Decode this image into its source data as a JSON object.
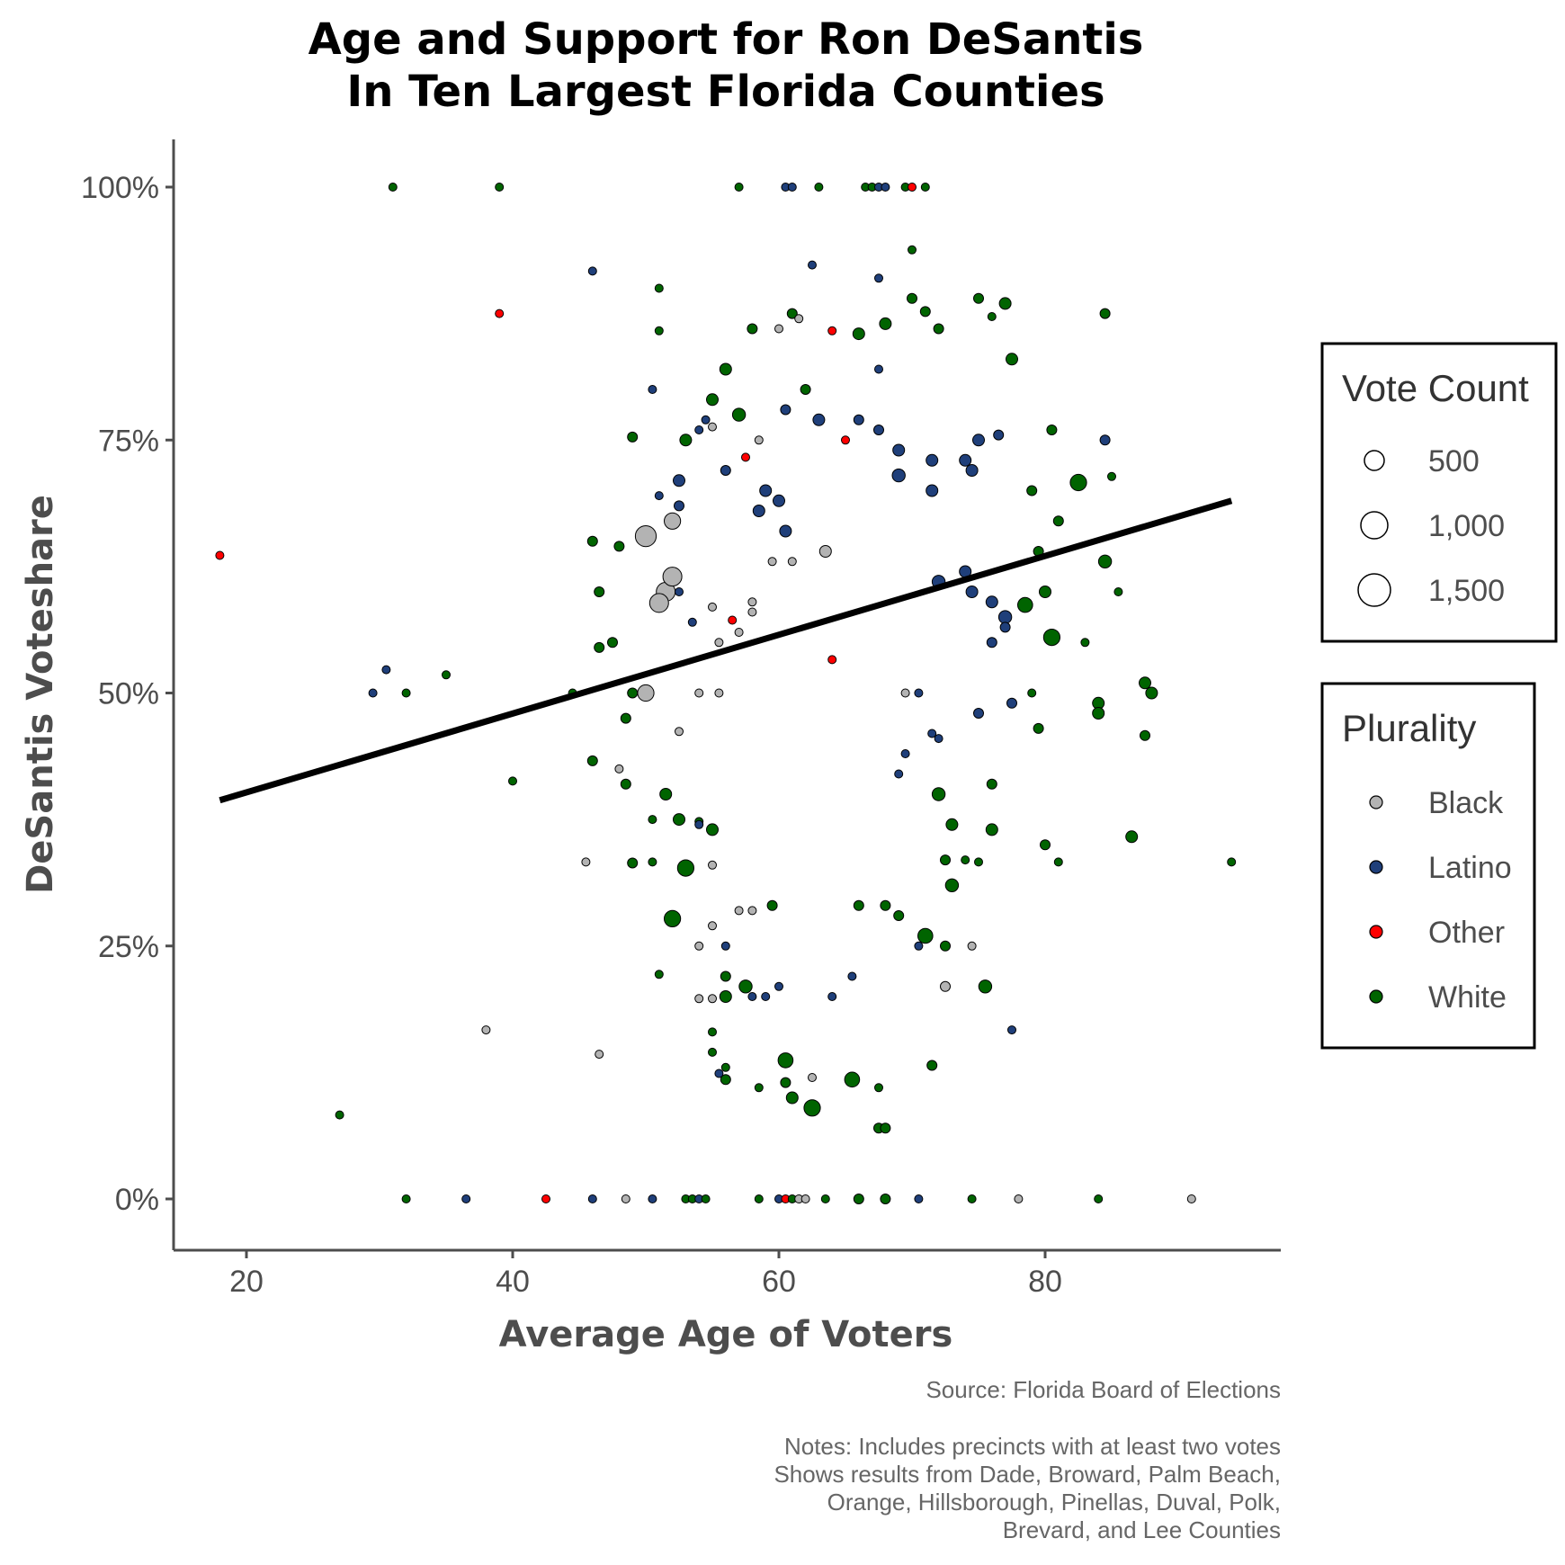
{
  "chart_data": {
    "type": "scatter",
    "title": [
      "Age and Support for Ron DeSantis",
      "In Ten Largest Florida Counties"
    ],
    "xlabel": "Average Age of Voters",
    "ylabel": "DeSantis Voteshare",
    "xlim": [
      14,
      97
    ],
    "ylim": [
      -0.05,
      1.05
    ],
    "x_ticks": [
      20,
      40,
      60,
      80
    ],
    "x_tick_labels": [
      "20",
      "40",
      "60",
      "80"
    ],
    "y_ticks": [
      0,
      0.25,
      0.5,
      0.75,
      1.0
    ],
    "y_tick_labels": [
      "0%",
      "25%",
      "50%",
      "75%",
      "100%"
    ],
    "grid": false,
    "trend_line": {
      "x": [
        18,
        94
      ],
      "y": [
        0.394,
        0.69
      ]
    },
    "size_legend": {
      "title": "Vote Count",
      "entries": [
        {
          "label": "500",
          "value": 500
        },
        {
          "label": "1,000",
          "value": 1000
        },
        {
          "label": "1,500",
          "value": 1500
        }
      ]
    },
    "color_legend": {
      "title": "Plurality",
      "entries": [
        {
          "label": "Black",
          "color": "#b3b3b3"
        },
        {
          "label": "Latino",
          "color": "#1f3f7a"
        },
        {
          "label": "Other",
          "color": "#ff0000"
        },
        {
          "label": "White",
          "color": "#006400"
        }
      ]
    },
    "legend_position": "right",
    "points": [
      [
        18,
        0.636,
        10,
        "Other"
      ],
      [
        27,
        0.083,
        10,
        "White"
      ],
      [
        31,
        1.0,
        10,
        "White"
      ],
      [
        29.5,
        0.5,
        10,
        "Latino"
      ],
      [
        30.5,
        0.523,
        10,
        "Latino"
      ],
      [
        32,
        0.5,
        10,
        "White"
      ],
      [
        35,
        0.518,
        10,
        "White"
      ],
      [
        39,
        1.0,
        10,
        "White"
      ],
      [
        39,
        0.875,
        10,
        "Other"
      ],
      [
        38,
        0.167,
        10,
        "Black"
      ],
      [
        40,
        0.413,
        10,
        "White"
      ],
      [
        46,
        0.917,
        10,
        "Latino"
      ],
      [
        51,
        0.9,
        10,
        "White"
      ],
      [
        45.5,
        0.333,
        10,
        "Black"
      ],
      [
        46.5,
        0.143,
        10,
        "Black"
      ],
      [
        44.5,
        0.5,
        10,
        "White"
      ],
      [
        50,
        0.5,
        200,
        "Black"
      ],
      [
        50,
        0.655,
        400,
        "Black"
      ],
      [
        51.5,
        0.6,
        300,
        "Black"
      ],
      [
        52,
        0.615,
        300,
        "Black"
      ],
      [
        51,
        0.589,
        300,
        "Black"
      ],
      [
        52,
        0.67,
        200,
        "Black"
      ],
      [
        46,
        0.65,
        30,
        "White"
      ],
      [
        46.5,
        0.6,
        30,
        "White"
      ],
      [
        48,
        0.645,
        30,
        "White"
      ],
      [
        49,
        0.5,
        30,
        "White"
      ],
      [
        48.5,
        0.475,
        30,
        "White"
      ],
      [
        46.5,
        0.545,
        30,
        "White"
      ],
      [
        46,
        0.433,
        30,
        "White"
      ],
      [
        48.5,
        0.41,
        30,
        "White"
      ],
      [
        49,
        0.332,
        30,
        "White"
      ],
      [
        48,
        0.425,
        10,
        "Black"
      ],
      [
        47.5,
        0.55,
        30,
        "White"
      ],
      [
        49,
        0.753,
        30,
        "White"
      ],
      [
        50.5,
        0.8,
        10,
        "Latino"
      ],
      [
        51,
        0.858,
        10,
        "White"
      ],
      [
        53,
        0.75,
        60,
        "White"
      ],
      [
        55,
        0.79,
        60,
        "White"
      ],
      [
        56,
        0.82,
        60,
        "White"
      ],
      [
        57,
        0.775,
        90,
        "White"
      ],
      [
        58,
        0.86,
        30,
        "White"
      ],
      [
        61,
        0.875,
        30,
        "White"
      ],
      [
        62,
        0.8,
        30,
        "White"
      ],
      [
        64,
        0.858,
        10,
        "Other"
      ],
      [
        66,
        0.855,
        60,
        "White"
      ],
      [
        68,
        0.865,
        60,
        "White"
      ],
      [
        70,
        0.89,
        30,
        "White"
      ],
      [
        72,
        0.86,
        30,
        "White"
      ],
      [
        75,
        0.89,
        30,
        "White"
      ],
      [
        77,
        0.885,
        60,
        "White"
      ],
      [
        77.5,
        0.83,
        60,
        "White"
      ],
      [
        76,
        0.872,
        10,
        "White"
      ],
      [
        62.5,
        0.923,
        10,
        "Latino"
      ],
      [
        67.5,
        0.91,
        10,
        "Latino"
      ],
      [
        70,
        0.938,
        10,
        "White"
      ],
      [
        71,
        0.877,
        30,
        "White"
      ],
      [
        84.5,
        0.875,
        30,
        "White"
      ],
      [
        84.5,
        0.75,
        30,
        "Latino"
      ],
      [
        85,
        0.714,
        10,
        "White"
      ],
      [
        84.5,
        0.63,
        90,
        "White"
      ],
      [
        85.5,
        0.6,
        10,
        "White"
      ],
      [
        82.5,
        0.708,
        200,
        "White"
      ],
      [
        83,
        0.55,
        10,
        "White"
      ],
      [
        80.5,
        0.555,
        200,
        "White"
      ],
      [
        80,
        0.6,
        60,
        "White"
      ],
      [
        78.5,
        0.587,
        150,
        "White"
      ],
      [
        79.5,
        0.465,
        30,
        "White"
      ],
      [
        79,
        0.5,
        10,
        "White"
      ],
      [
        81,
        0.333,
        10,
        "White"
      ],
      [
        80,
        0.35,
        30,
        "White"
      ],
      [
        84,
        0.49,
        60,
        "White"
      ],
      [
        84,
        0.48,
        60,
        "White"
      ],
      [
        87.5,
        0.51,
        60,
        "White"
      ],
      [
        88,
        0.5,
        60,
        "White"
      ],
      [
        87.5,
        0.458,
        30,
        "White"
      ],
      [
        86.5,
        0.358,
        60,
        "White"
      ],
      [
        81,
        0.67,
        30,
        "White"
      ],
      [
        79.5,
        0.64,
        30,
        "White"
      ],
      [
        80.5,
        0.76,
        30,
        "White"
      ],
      [
        79,
        0.7,
        30,
        "White"
      ],
      [
        94,
        0.333,
        10,
        "White"
      ],
      [
        77.5,
        0.167,
        10,
        "Latino"
      ],
      [
        75.5,
        0.21,
        90,
        "White"
      ],
      [
        72.5,
        0.21,
        30,
        "Black"
      ],
      [
        74.5,
        0.25,
        10,
        "Black"
      ],
      [
        72.5,
        0.25,
        30,
        "White"
      ],
      [
        71.5,
        0.132,
        30,
        "White"
      ],
      [
        67.5,
        0.07,
        30,
        "White"
      ],
      [
        68,
        0.07,
        30,
        "White"
      ],
      [
        62.5,
        0.09,
        200,
        "White"
      ],
      [
        62.5,
        0.12,
        10,
        "Black"
      ],
      [
        60.5,
        0.137,
        150,
        "White"
      ],
      [
        60.5,
        0.115,
        30,
        "White"
      ],
      [
        61,
        0.1,
        60,
        "White"
      ],
      [
        65.5,
        0.118,
        150,
        "White"
      ],
      [
        67.5,
        0.11,
        10,
        "White"
      ],
      [
        58.5,
        0.11,
        10,
        "White"
      ],
      [
        56,
        0.13,
        10,
        "White"
      ],
      [
        56,
        0.118,
        30,
        "White"
      ],
      [
        55.5,
        0.124,
        10,
        "Latino"
      ],
      [
        55,
        0.145,
        10,
        "White"
      ],
      [
        55,
        0.165,
        10,
        "White"
      ],
      [
        54,
        0.198,
        10,
        "Black"
      ],
      [
        55,
        0.198,
        10,
        "Black"
      ],
      [
        56,
        0.2,
        60,
        "White"
      ],
      [
        56,
        0.22,
        30,
        "White"
      ],
      [
        57.5,
        0.21,
        90,
        "White"
      ],
      [
        54,
        0.25,
        10,
        "Black"
      ],
      [
        55,
        0.27,
        10,
        "Black"
      ],
      [
        52,
        0.277,
        200,
        "White"
      ],
      [
        51,
        0.222,
        10,
        "White"
      ],
      [
        53,
        0.327,
        200,
        "White"
      ],
      [
        52.5,
        0.375,
        60,
        "White"
      ],
      [
        54,
        0.373,
        10,
        "White"
      ],
      [
        55,
        0.365,
        60,
        "White"
      ],
      [
        50.5,
        0.333,
        10,
        "White"
      ],
      [
        51.5,
        0.4,
        60,
        "White"
      ],
      [
        50.5,
        0.375,
        10,
        "White"
      ],
      [
        55,
        0.33,
        10,
        "Black"
      ],
      [
        57,
        0.285,
        10,
        "Black"
      ],
      [
        58,
        0.285,
        10,
        "Black"
      ],
      [
        59.5,
        0.29,
        30,
        "White"
      ],
      [
        66,
        0.29,
        30,
        "White"
      ],
      [
        68,
        0.29,
        30,
        "White"
      ],
      [
        69,
        0.28,
        30,
        "White"
      ],
      [
        71,
        0.26,
        150,
        "White"
      ],
      [
        73,
        0.31,
        90,
        "White"
      ],
      [
        72.5,
        0.335,
        30,
        "White"
      ],
      [
        74,
        0.335,
        10,
        "White"
      ],
      [
        75,
        0.333,
        10,
        "White"
      ],
      [
        76,
        0.365,
        60,
        "White"
      ],
      [
        76,
        0.41,
        30,
        "White"
      ],
      [
        73,
        0.37,
        60,
        "White"
      ],
      [
        72,
        0.4,
        90,
        "White"
      ],
      [
        32,
        0.0,
        10,
        "White"
      ],
      [
        36.5,
        0.0,
        10,
        "Latino"
      ],
      [
        42.5,
        0.0,
        10,
        "Other"
      ],
      [
        46,
        0.0,
        10,
        "Latino"
      ],
      [
        48.5,
        0.0,
        10,
        "Black"
      ],
      [
        50.5,
        0.0,
        10,
        "Latino"
      ],
      [
        53,
        0.0,
        10,
        "White"
      ],
      [
        53.5,
        0.0,
        10,
        "White"
      ],
      [
        54,
        0.0,
        10,
        "Latino"
      ],
      [
        54.5,
        0.0,
        10,
        "White"
      ],
      [
        58.5,
        0.0,
        10,
        "White"
      ],
      [
        60,
        0.0,
        10,
        "Latino"
      ],
      [
        60.5,
        0.0,
        10,
        "Other"
      ],
      [
        61,
        0.0,
        10,
        "White"
      ],
      [
        61.5,
        0.0,
        10,
        "Black"
      ],
      [
        62,
        0.0,
        10,
        "Black"
      ],
      [
        63.5,
        0.0,
        10,
        "White"
      ],
      [
        66,
        0.0,
        30,
        "White"
      ],
      [
        68,
        0.0,
        30,
        "White"
      ],
      [
        70.5,
        0.0,
        10,
        "Latino"
      ],
      [
        74.5,
        0.0,
        10,
        "White"
      ],
      [
        78,
        0.0,
        10,
        "Black"
      ],
      [
        84,
        0.0,
        10,
        "White"
      ],
      [
        91,
        0.0,
        10,
        "Black"
      ],
      [
        57,
        1.0,
        10,
        "White"
      ],
      [
        60.5,
        1.0,
        10,
        "Latino"
      ],
      [
        61,
        1.0,
        10,
        "Latino"
      ],
      [
        63,
        1.0,
        10,
        "White"
      ],
      [
        66.5,
        1.0,
        10,
        "White"
      ],
      [
        67,
        1.0,
        10,
        "White"
      ],
      [
        67.5,
        1.0,
        10,
        "Latino"
      ],
      [
        68,
        1.0,
        10,
        "Latino"
      ],
      [
        69.5,
        1.0,
        10,
        "White"
      ],
      [
        70,
        1.0,
        10,
        "Other"
      ],
      [
        71,
        1.0,
        10,
        "White"
      ],
      [
        65,
        0.75,
        10,
        "Other"
      ],
      [
        64,
        0.533,
        10,
        "Other"
      ],
      [
        56.5,
        0.572,
        10,
        "Other"
      ],
      [
        57.5,
        0.733,
        10,
        "Other"
      ],
      [
        54,
        0.76,
        10,
        "Latino"
      ],
      [
        54.5,
        0.77,
        10,
        "Latino"
      ],
      [
        56,
        0.72,
        30,
        "Latino"
      ],
      [
        60.5,
        0.78,
        30,
        "Latino"
      ],
      [
        63,
        0.77,
        60,
        "Latino"
      ],
      [
        66,
        0.77,
        30,
        "Latino"
      ],
      [
        67.5,
        0.76,
        30,
        "Latino"
      ],
      [
        67.5,
        0.82,
        10,
        "Latino"
      ],
      [
        69,
        0.74,
        60,
        "Latino"
      ],
      [
        69,
        0.715,
        90,
        "Latino"
      ],
      [
        71.5,
        0.73,
        60,
        "Latino"
      ],
      [
        74,
        0.73,
        60,
        "Latino"
      ],
      [
        75,
        0.75,
        60,
        "Latino"
      ],
      [
        76.5,
        0.755,
        30,
        "Latino"
      ],
      [
        71.5,
        0.7,
        60,
        "Latino"
      ],
      [
        74.5,
        0.72,
        60,
        "Latino"
      ],
      [
        59,
        0.7,
        60,
        "Latino"
      ],
      [
        60,
        0.69,
        60,
        "Latino"
      ],
      [
        58.5,
        0.68,
        60,
        "Latino"
      ],
      [
        60.5,
        0.66,
        60,
        "Latino"
      ],
      [
        77,
        0.575,
        90,
        "Latino"
      ],
      [
        76,
        0.59,
        60,
        "Latino"
      ],
      [
        77,
        0.565,
        30,
        "Latino"
      ],
      [
        76,
        0.55,
        30,
        "Latino"
      ],
      [
        77.5,
        0.49,
        30,
        "Latino"
      ],
      [
        75,
        0.48,
        30,
        "Latino"
      ],
      [
        74.5,
        0.6,
        60,
        "Latino"
      ],
      [
        74,
        0.62,
        60,
        "Latino"
      ],
      [
        72,
        0.61,
        90,
        "Latino"
      ],
      [
        70.5,
        0.5,
        10,
        "Latino"
      ],
      [
        69.5,
        0.44,
        10,
        "Latino"
      ],
      [
        69,
        0.42,
        10,
        "Latino"
      ],
      [
        71.5,
        0.46,
        10,
        "Latino"
      ],
      [
        72,
        0.455,
        10,
        "Latino"
      ],
      [
        70.5,
        0.25,
        10,
        "Latino"
      ],
      [
        65.5,
        0.22,
        10,
        "Latino"
      ],
      [
        64,
        0.2,
        10,
        "Latino"
      ],
      [
        60,
        0.21,
        10,
        "Latino"
      ],
      [
        59,
        0.2,
        10,
        "Latino"
      ],
      [
        58,
        0.2,
        10,
        "Latino"
      ],
      [
        56,
        0.25,
        10,
        "Latino"
      ],
      [
        54,
        0.37,
        10,
        "Latino"
      ],
      [
        53.5,
        0.57,
        10,
        "Latino"
      ],
      [
        52.5,
        0.6,
        10,
        "Latino"
      ],
      [
        51,
        0.695,
        10,
        "Latino"
      ],
      [
        52.5,
        0.71,
        60,
        "Latino"
      ],
      [
        52.5,
        0.685,
        30,
        "Latino"
      ],
      [
        55,
        0.585,
        10,
        "Black"
      ],
      [
        58,
        0.59,
        10,
        "Black"
      ],
      [
        52.5,
        0.462,
        10,
        "Black"
      ],
      [
        55.5,
        0.5,
        10,
        "Black"
      ],
      [
        54,
        0.5,
        10,
        "Black"
      ],
      [
        59.5,
        0.63,
        10,
        "Black"
      ],
      [
        63.5,
        0.64,
        60,
        "Black"
      ],
      [
        61,
        0.63,
        10,
        "Black"
      ],
      [
        69.5,
        0.5,
        10,
        "Black"
      ],
      [
        55,
        0.763,
        10,
        "Black"
      ],
      [
        61.5,
        0.87,
        10,
        "Black"
      ],
      [
        60,
        0.86,
        10,
        "Black"
      ],
      [
        58.5,
        0.75,
        10,
        "Black"
      ],
      [
        58,
        0.58,
        10,
        "Black"
      ],
      [
        57,
        0.56,
        10,
        "Black"
      ],
      [
        55.5,
        0.55,
        10,
        "Black"
      ]
    ]
  },
  "caption": {
    "source": "Source: Florida Board of Elections",
    "notes": [
      "Notes: Includes precincts with at least two votes",
      "Shows results from Dade, Broward, Palm Beach,",
      "Orange, Hillsborough, Pinellas, Duval, Polk,",
      "Brevard, and Lee Counties"
    ]
  }
}
